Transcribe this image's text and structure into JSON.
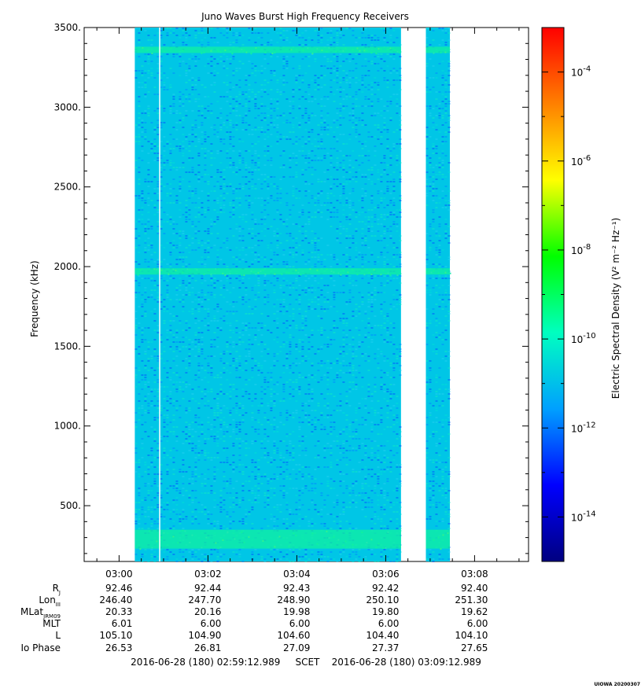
{
  "chart_data": {
    "type": "heatmap",
    "title": "Juno Waves Burst High Frequency Receivers",
    "ylabel": "Frequency (kHz)",
    "ylim": [
      150,
      3500
    ],
    "y_ticks": [
      "3500.",
      "3000.",
      "2500.",
      "2000.",
      "1500.",
      "1000.",
      "500."
    ],
    "y_tick_values": [
      3500,
      3000,
      2500,
      2000,
      1500,
      1000,
      500
    ],
    "x_range": [
      "02:59:12.989",
      "03:09:12.989"
    ],
    "x_ticks": [
      "03:00",
      "03:02",
      "03:04",
      "03:06",
      "03:08"
    ],
    "x_tick_values_min": [
      0.786,
      2.786,
      4.786,
      6.786,
      8.786
    ],
    "data_segments_min": [
      [
        1.14,
        7.13
      ],
      [
        7.69,
        8.23
      ]
    ],
    "emission_bands_khz": [
      290,
      1970,
      3360
    ],
    "gap_line_min": 1.7,
    "colorbar": {
      "label": "Electric Spectral Density (V² m⁻² Hz⁻¹)",
      "scale": "log",
      "range": [
        1e-15,
        0.001
      ],
      "ticks": [
        -4,
        -6,
        -8,
        -10,
        -12,
        -14
      ],
      "tick_labels": [
        "10-4",
        "10-6",
        "10-8",
        "10-10",
        "10-12",
        "10-14"
      ],
      "colors": [
        "#000080",
        "#0000ff",
        "#00a0ff",
        "#00ffc0",
        "#00ff00",
        "#ffff00",
        "#ff8000",
        "#ff0000"
      ]
    },
    "ephemeris": {
      "rows": [
        {
          "label": "RJ",
          "values": [
            "92.46",
            "92.44",
            "92.43",
            "92.42",
            "92.40"
          ]
        },
        {
          "label": "LonIII",
          "values": [
            "246.40",
            "247.70",
            "248.90",
            "250.10",
            "251.30"
          ]
        },
        {
          "label": "MLatJRM09",
          "values": [
            "20.33",
            "20.16",
            "19.98",
            "19.80",
            "19.62"
          ]
        },
        {
          "label": "MLT",
          "values": [
            "6.01",
            "6.00",
            "6.00",
            "6.00",
            "6.00"
          ]
        },
        {
          "label": "L",
          "values": [
            "105.10",
            "104.90",
            "104.60",
            "104.40",
            "104.10"
          ]
        },
        {
          "label": "Io Phase",
          "values": [
            "26.53",
            "26.81",
            "27.09",
            "27.37",
            "27.65"
          ]
        }
      ]
    },
    "footer": "2016-06-28 (180) 02:59:12.989     SCET    2016-06-28 (180) 03:09:12.989",
    "stamp": "UIOWA 20200307"
  }
}
